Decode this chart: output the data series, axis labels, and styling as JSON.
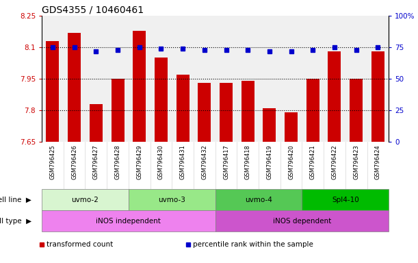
{
  "title": "GDS4355 / 10460461",
  "samples": [
    "GSM796425",
    "GSM796426",
    "GSM796427",
    "GSM796428",
    "GSM796429",
    "GSM796430",
    "GSM796431",
    "GSM796432",
    "GSM796417",
    "GSM796418",
    "GSM796419",
    "GSM796420",
    "GSM796421",
    "GSM796422",
    "GSM796423",
    "GSM796424"
  ],
  "transformed_count": [
    8.13,
    8.17,
    7.83,
    7.95,
    8.18,
    8.05,
    7.97,
    7.93,
    7.93,
    7.94,
    7.81,
    7.79,
    7.95,
    8.08,
    7.95,
    8.08
  ],
  "percentile_rank": [
    75,
    75,
    72,
    73,
    75,
    74,
    74,
    73,
    73,
    73,
    72,
    72,
    73,
    75,
    73,
    75
  ],
  "ylim_left": [
    7.65,
    8.25
  ],
  "ylim_right": [
    0,
    100
  ],
  "yticks_left": [
    7.65,
    7.8,
    7.95,
    8.1,
    8.25
  ],
  "yticks_right": [
    0,
    25,
    50,
    75,
    100
  ],
  "ytick_labels_left": [
    "7.65",
    "7.8",
    "7.95",
    "8.1",
    "8.25"
  ],
  "ytick_labels_right": [
    "0",
    "25",
    "50",
    "75",
    "100%"
  ],
  "hlines": [
    7.8,
    7.95,
    8.1
  ],
  "cell_line_groups": [
    {
      "label": "uvmo-2",
      "start": 0,
      "end": 3,
      "color": "#d8f5d0"
    },
    {
      "label": "uvmo-3",
      "start": 4,
      "end": 7,
      "color": "#98e888"
    },
    {
      "label": "uvmo-4",
      "start": 8,
      "end": 11,
      "color": "#55c855"
    },
    {
      "label": "Spl4-10",
      "start": 12,
      "end": 15,
      "color": "#00bb00"
    }
  ],
  "cell_type_groups": [
    {
      "label": "iNOS independent",
      "start": 0,
      "end": 7,
      "color": "#ee82ee"
    },
    {
      "label": "iNOS dependent",
      "start": 8,
      "end": 15,
      "color": "#cc55cc"
    }
  ],
  "bar_color": "#cc0000",
  "dot_color": "#0000cc",
  "bar_width": 0.6,
  "legend_items": [
    {
      "color": "#cc0000",
      "label": "transformed count"
    },
    {
      "color": "#0000cc",
      "label": "percentile rank within the sample"
    }
  ],
  "title_fontsize": 10,
  "tick_label_fontsize": 7.5,
  "sample_label_fontsize": 6,
  "axis_label_color_left": "#cc0000",
  "axis_label_color_right": "#0000cc",
  "bg_color": "#f0f0f0"
}
